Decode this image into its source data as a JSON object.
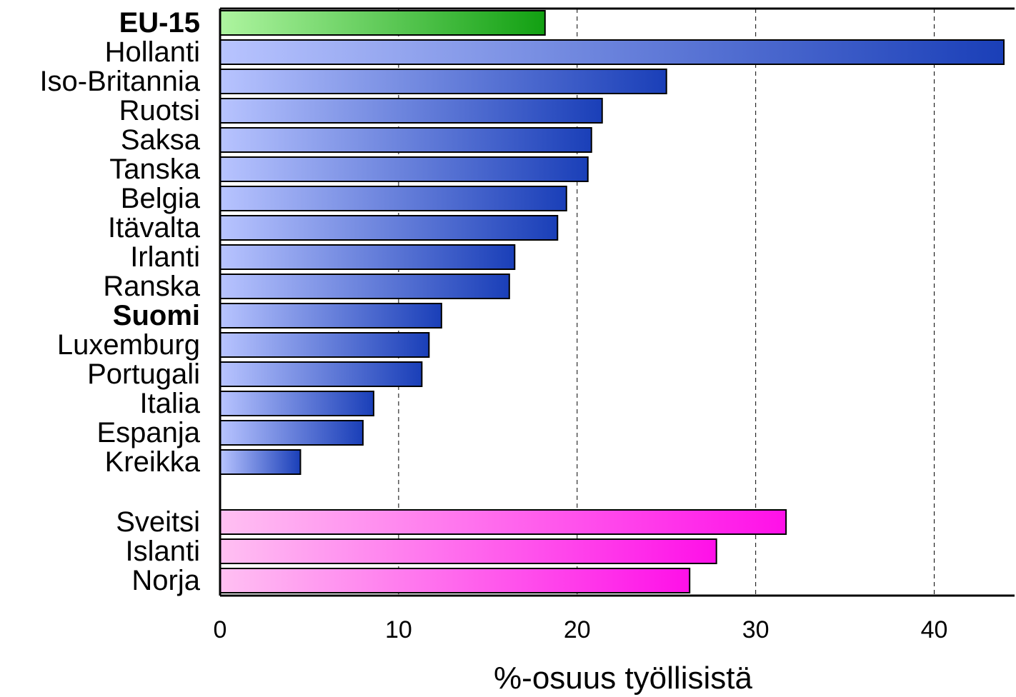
{
  "chart_data": {
    "type": "bar",
    "orientation": "horizontal",
    "categories": [
      "EU-15",
      "Hollanti",
      "Iso-Britannia",
      "Ruotsi",
      "Saksa",
      "Tanska",
      "Belgia",
      "Itävalta",
      "Irlanti",
      "Ranska",
      "Suomi",
      "Luxemburg",
      "Portugali",
      "Italia",
      "Espanja",
      "Kreikka",
      "Sveitsi",
      "Islanti",
      "Norja"
    ],
    "values": [
      18.2,
      43.9,
      25.0,
      21.4,
      20.8,
      20.6,
      19.4,
      18.9,
      16.5,
      16.2,
      12.4,
      11.7,
      11.3,
      8.6,
      8.0,
      4.5,
      31.7,
      27.8,
      26.3
    ],
    "groups": [
      "eu15",
      "eu",
      "eu",
      "eu",
      "eu",
      "eu",
      "eu",
      "eu",
      "eu",
      "eu",
      "eu",
      "eu",
      "eu",
      "eu",
      "eu",
      "eu",
      "nordic_other",
      "nordic_other",
      "nordic_other"
    ],
    "bold_categories": [
      "EU-15",
      "Suomi"
    ],
    "group_colors": {
      "eu15": {
        "light": "#aef5a0",
        "dark": "#12a012"
      },
      "eu": {
        "light": "#b8c4ff",
        "dark": "#1a3fb8"
      },
      "nordic_other": {
        "light": "#ffc0f2",
        "dark": "#ff10e8"
      }
    },
    "xlabel": "%-osuus työllisistä",
    "ylabel": "",
    "xlim": [
      0,
      44.5
    ],
    "xticks": [
      0,
      10,
      20,
      30,
      40
    ],
    "xtick_labels": [
      "0",
      "10",
      "20",
      "30",
      "40"
    ],
    "grid": "vertical dashed",
    "legend": "none"
  }
}
